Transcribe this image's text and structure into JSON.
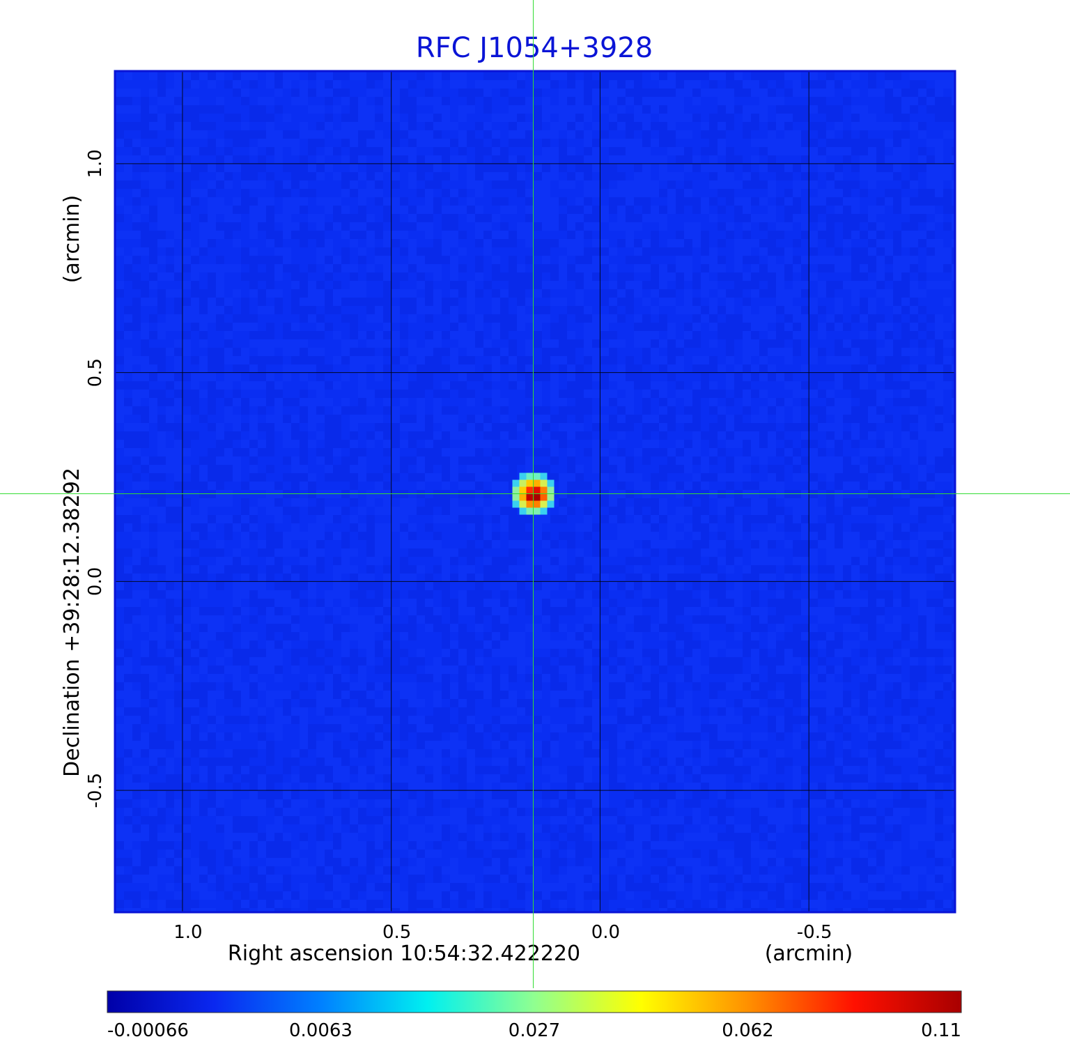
{
  "chart_data": {
    "type": "heatmap",
    "title": "RFC J1054+3928",
    "title_color": "#0a14d6",
    "xlabel": "Right ascension  10:54:32.422220",
    "xunit": "(arcmin)",
    "ylabel": "Declination  +39:28:12.38292",
    "yunit": "(arcmin)",
    "x_ticks": [
      "1.0",
      "0.5",
      "0.0",
      "-0.5"
    ],
    "x_tick_values": [
      1.0,
      0.5,
      0.0,
      -0.5
    ],
    "y_ticks": [
      "1.0",
      "0.5",
      "0.0",
      "-0.5"
    ],
    "y_tick_values": [
      1.0,
      0.5,
      0.0,
      -0.5
    ],
    "xlim": [
      1.16,
      -0.85
    ],
    "ylim": [
      -0.79,
      1.22
    ],
    "grid": true,
    "source": {
      "x": 0.16,
      "y": 0.21,
      "peak": 0.11
    },
    "crosshair": {
      "x": 0.16,
      "y": 0.21,
      "color": "#33dd33"
    },
    "background_level": 0.0,
    "frame_color": "#0a14d6",
    "colorbar": {
      "ticks": [
        "-0.00066",
        "0.0063",
        "0.027",
        "0.062",
        "0.11"
      ],
      "stops": [
        "#0000a8",
        "#0a28f0",
        "#0080ff",
        "#00f0f0",
        "#90ff90",
        "#ffff00",
        "#ff9000",
        "#ff1000",
        "#a80000"
      ]
    }
  }
}
